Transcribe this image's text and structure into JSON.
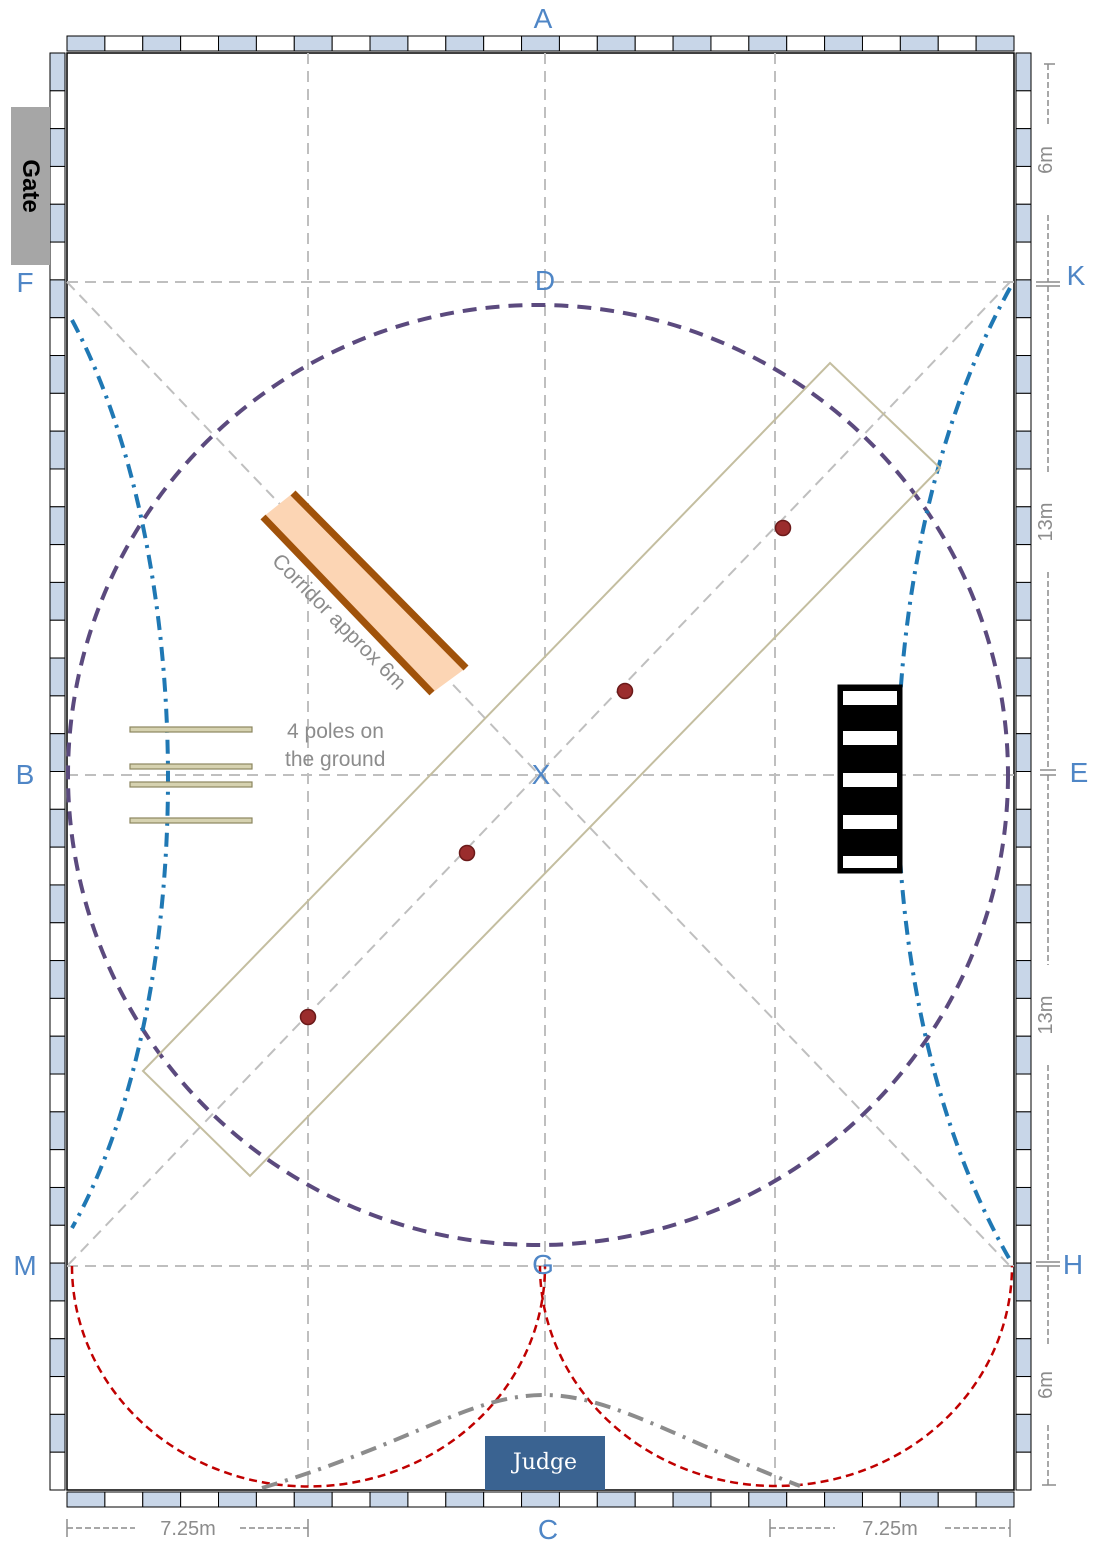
{
  "letters": {
    "A": "A",
    "C": "C",
    "F": "F",
    "K": "K",
    "B": "B",
    "E": "E",
    "M": "M",
    "H": "H",
    "D": "D",
    "X": "X",
    "G": "G"
  },
  "labels": {
    "gate": "Gate",
    "judge": "Judge",
    "corridor": "Corridor approx 6m",
    "poles_line1": "4 poles on",
    "poles_line2": "the ground"
  },
  "dimensions": {
    "top_right": "6m",
    "upper_right": "13m",
    "lower_right": "13m",
    "bottom_right": "6m",
    "bottom_left": "7.25m",
    "bottom_right_width": "7.25m"
  },
  "colors": {
    "letter": "#4f86c6",
    "circle": "#5b4a7e",
    "serpentine": "#1f78b4",
    "half_circle": "#c00000",
    "corridor_fill": "#fcd5b4",
    "corridor_edge": "#a0520a",
    "cone": "#9b2d2d",
    "pole": "#b5b088",
    "board": "#c8d6e8"
  },
  "icons": {
    "cone": "cone-marker-icon",
    "poles": "ground-pole-icon",
    "cavaletti": "striped-obstacle-icon"
  }
}
